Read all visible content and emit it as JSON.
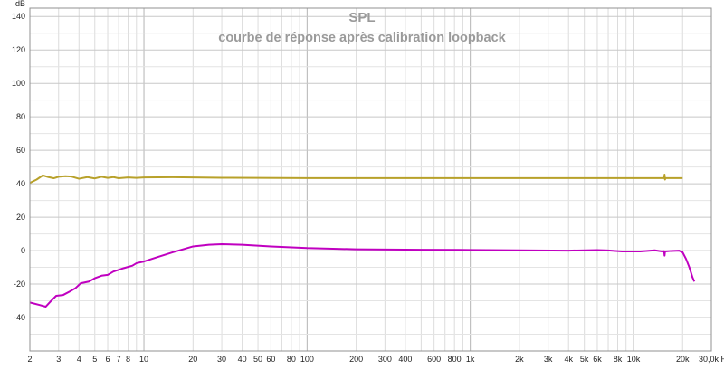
{
  "chart_data": {
    "type": "line",
    "title": "SPL",
    "subtitle": "courbe de réponse après calibration loopback",
    "ylabel": "dB",
    "xunit": "Hz",
    "xscale": "log",
    "xlim": [
      2,
      30000
    ],
    "ylim": [
      -60,
      145
    ],
    "grid": true,
    "x_ticks": [
      {
        "value": 2,
        "label": "2"
      },
      {
        "value": 3,
        "label": "3"
      },
      {
        "value": 4,
        "label": "4"
      },
      {
        "value": 5,
        "label": "5"
      },
      {
        "value": 6,
        "label": "6"
      },
      {
        "value": 7,
        "label": "7"
      },
      {
        "value": 8,
        "label": "8"
      },
      {
        "value": 10,
        "label": "10"
      },
      {
        "value": 20,
        "label": "20"
      },
      {
        "value": 30,
        "label": "30"
      },
      {
        "value": 40,
        "label": "40"
      },
      {
        "value": 50,
        "label": "50"
      },
      {
        "value": 60,
        "label": "60"
      },
      {
        "value": 80,
        "label": "80"
      },
      {
        "value": 100,
        "label": "100"
      },
      {
        "value": 200,
        "label": "200"
      },
      {
        "value": 300,
        "label": "300"
      },
      {
        "value": 400,
        "label": "400"
      },
      {
        "value": 600,
        "label": "600"
      },
      {
        "value": 800,
        "label": "800"
      },
      {
        "value": 1000,
        "label": "1k"
      },
      {
        "value": 2000,
        "label": "2k"
      },
      {
        "value": 3000,
        "label": "3k"
      },
      {
        "value": 4000,
        "label": "4k"
      },
      {
        "value": 5000,
        "label": "5k"
      },
      {
        "value": 6000,
        "label": "6k"
      },
      {
        "value": 8000,
        "label": "8k"
      },
      {
        "value": 10000,
        "label": "10k"
      },
      {
        "value": 20000,
        "label": "20k"
      },
      {
        "value": 30000,
        "label": "30,0k Hz"
      }
    ],
    "y_ticks": [
      {
        "value": 140,
        "label": "140"
      },
      {
        "value": 120,
        "label": "120"
      },
      {
        "value": 100,
        "label": "100"
      },
      {
        "value": 80,
        "label": "80"
      },
      {
        "value": 60,
        "label": "60"
      },
      {
        "value": 40,
        "label": "40"
      },
      {
        "value": 20,
        "label": "20"
      },
      {
        "value": 0,
        "label": "0"
      },
      {
        "value": -20,
        "label": "-20"
      },
      {
        "value": -40,
        "label": "-40"
      }
    ],
    "series": [
      {
        "color": "#b8a12a",
        "points": [
          [
            2.0,
            40.5
          ],
          [
            2.2,
            42.5
          ],
          [
            2.4,
            45.0
          ],
          [
            2.6,
            44.0
          ],
          [
            2.8,
            43.3
          ],
          [
            3.0,
            44.2
          ],
          [
            3.3,
            44.5
          ],
          [
            3.6,
            44.3
          ],
          [
            4.0,
            43.0
          ],
          [
            4.5,
            44.0
          ],
          [
            5.0,
            43.2
          ],
          [
            5.5,
            44.2
          ],
          [
            6.0,
            43.5
          ],
          [
            6.5,
            44.0
          ],
          [
            7.0,
            43.3
          ],
          [
            8.0,
            43.8
          ],
          [
            9.0,
            43.5
          ],
          [
            10.0,
            43.8
          ],
          [
            15.0,
            43.9
          ],
          [
            20.0,
            43.8
          ],
          [
            30.0,
            43.6
          ],
          [
            50.0,
            43.5
          ],
          [
            100.0,
            43.4
          ],
          [
            500.0,
            43.4
          ],
          [
            1000.0,
            43.4
          ],
          [
            5000.0,
            43.4
          ],
          [
            15000.0,
            43.4
          ],
          [
            15400.0,
            43.4
          ],
          [
            15500.0,
            45.5
          ],
          [
            15600.0,
            42.5
          ],
          [
            15700.0,
            43.4
          ],
          [
            20000.0,
            43.4
          ]
        ]
      },
      {
        "color": "#c000c0",
        "points": [
          [
            2.0,
            -31.0
          ],
          [
            2.3,
            -32.5
          ],
          [
            2.5,
            -33.5
          ],
          [
            2.7,
            -30.0
          ],
          [
            2.9,
            -27.0
          ],
          [
            3.2,
            -26.5
          ],
          [
            3.5,
            -24.5
          ],
          [
            3.8,
            -22.5
          ],
          [
            4.1,
            -19.5
          ],
          [
            4.6,
            -18.5
          ],
          [
            5.0,
            -16.5
          ],
          [
            5.5,
            -15.0
          ],
          [
            6.0,
            -14.5
          ],
          [
            6.5,
            -12.5
          ],
          [
            7.0,
            -11.5
          ],
          [
            7.5,
            -10.5
          ],
          [
            8.5,
            -9.0
          ],
          [
            9.0,
            -7.5
          ],
          [
            10.0,
            -6.5
          ],
          [
            12.0,
            -4.0
          ],
          [
            15.0,
            -1.0
          ],
          [
            20.0,
            2.5
          ],
          [
            25.0,
            3.5
          ],
          [
            30.0,
            3.8
          ],
          [
            40.0,
            3.5
          ],
          [
            60.0,
            2.5
          ],
          [
            100.0,
            1.5
          ],
          [
            200.0,
            0.8
          ],
          [
            500.0,
            0.5
          ],
          [
            1000.0,
            0.4
          ],
          [
            2000.0,
            0.2
          ],
          [
            4000.0,
            0.0
          ],
          [
            6000.0,
            0.3
          ],
          [
            7000.0,
            0.1
          ],
          [
            8500.0,
            -0.5
          ],
          [
            11000.0,
            -0.5
          ],
          [
            13500.0,
            0.2
          ],
          [
            15000.0,
            -0.5
          ],
          [
            15400.0,
            -0.3
          ],
          [
            15500.0,
            -3.0
          ],
          [
            15600.0,
            -0.5
          ],
          [
            17000.0,
            -0.2
          ],
          [
            19000.0,
            0.0
          ],
          [
            20000.0,
            -1.0
          ],
          [
            21000.0,
            -5.0
          ],
          [
            22000.0,
            -10.0
          ],
          [
            23000.0,
            -16.0
          ],
          [
            23600.0,
            -18.5
          ]
        ]
      }
    ]
  }
}
